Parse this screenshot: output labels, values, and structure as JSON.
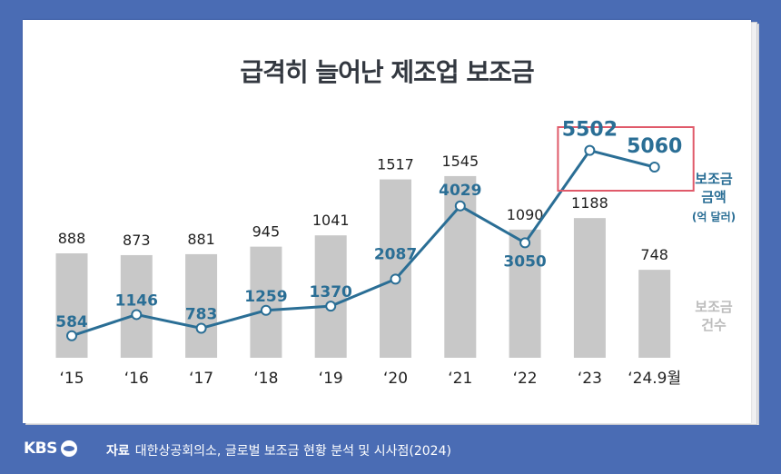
{
  "title": "급격히 늘어난 제조업 보조금",
  "footer": {
    "logo": "KBS",
    "source_label": "자료",
    "source_text": "대한상공회의소, 글로벌 보조금 현황 분석 및 시사점(2024)"
  },
  "colors": {
    "bar": "#c8c8c8",
    "line": "#2a6e95",
    "highlight_box": "#e05a6a",
    "text_dark": "#222222",
    "legend_bar_label": "#bdbdbd"
  },
  "chart_data": {
    "type": "bar+line",
    "categories": [
      "‘15",
      "‘16",
      "‘17",
      "‘18",
      "‘19",
      "‘20",
      "‘21",
      "‘22",
      "‘23",
      "‘24.9월"
    ],
    "series": [
      {
        "name": "보조금 건수",
        "kind": "bar",
        "values": [
          888,
          873,
          881,
          945,
          1041,
          1517,
          1545,
          1090,
          1188,
          748
        ]
      },
      {
        "name": "보조금 금액 (억 달러)",
        "kind": "line",
        "values": [
          584,
          1146,
          783,
          1259,
          1370,
          2087,
          4029,
          3050,
          5502,
          5060
        ]
      }
    ],
    "legend": {
      "line": [
        "보조금",
        "금액",
        "(억 달러)"
      ],
      "bar": [
        "보조금",
        "건수"
      ]
    },
    "highlight": {
      "from_index": 8,
      "to_index": 9
    },
    "grid": false
  }
}
